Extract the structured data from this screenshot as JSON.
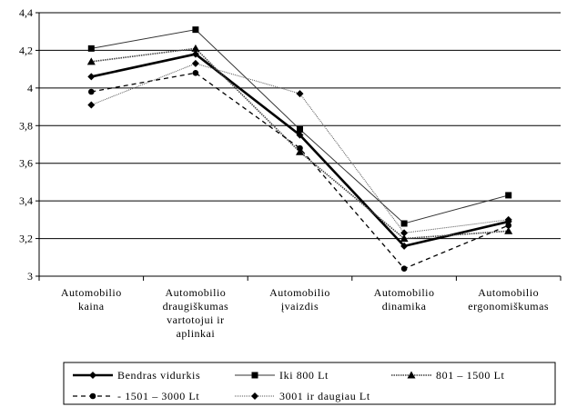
{
  "chart_data": {
    "type": "line",
    "title": "",
    "xlabel": "",
    "ylabel": "",
    "ylim": [
      3,
      4.4
    ],
    "ytick_step": 0.2,
    "ytick_labels": [
      "3",
      "3,2",
      "3,4",
      "3,6",
      "3,8",
      "4",
      "4,2",
      "4,4"
    ],
    "grid": true,
    "legend": "bottom",
    "categories": [
      [
        "Automobilio",
        "kaina"
      ],
      [
        "Automobilio",
        "draugiškumas",
        "vartotojui ir",
        "aplinkai"
      ],
      [
        "Automobilio",
        "įvaizdis"
      ],
      [
        "Automobilio",
        "dinamika"
      ],
      [
        "Automobilio",
        "ergonomiškumas"
      ]
    ],
    "series": [
      {
        "name": "Bendras vidurkis",
        "values": [
          4.06,
          4.18,
          3.75,
          3.16,
          3.29
        ],
        "marker": "diamond",
        "stroke": "#000000",
        "width": 2.6,
        "dash": ""
      },
      {
        "name": "Iki 800 Lt",
        "values": [
          4.21,
          4.31,
          3.78,
          3.28,
          3.43
        ],
        "marker": "square",
        "stroke": "#333333",
        "width": 1,
        "dash": ""
      },
      {
        "name": "801 – 1500 Lt",
        "values": [
          4.14,
          4.21,
          3.66,
          3.2,
          3.24
        ],
        "marker": "triangle",
        "stroke": "#444444",
        "width": 1.6,
        "dash": "1.5,1"
      },
      {
        "name": "- 1501 – 3000 Lt",
        "values": [
          3.98,
          4.08,
          3.68,
          3.04,
          3.27
        ],
        "marker": "circle",
        "stroke": "#000000",
        "width": 1.3,
        "dash": "5,4"
      },
      {
        "name": "3001 ir daugiau Lt",
        "values": [
          3.91,
          4.13,
          3.97,
          3.23,
          3.3
        ],
        "marker": "diamond",
        "stroke": "#555555",
        "width": 1,
        "dash": "1,1"
      }
    ]
  }
}
